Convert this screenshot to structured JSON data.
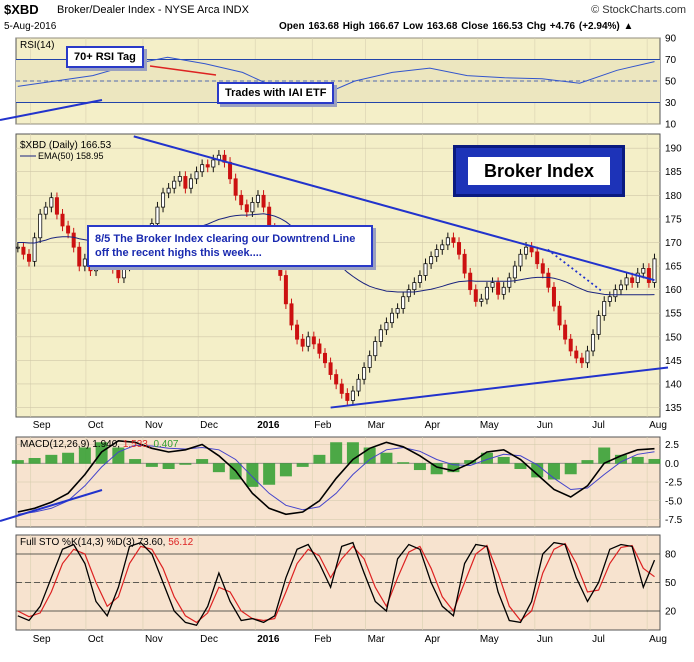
{
  "header": {
    "symbol": "$XBD",
    "subtitle": "Broker/Dealer Index - NYSE Arca INDX",
    "date": "5-Aug-2016",
    "ohlc": "Open 163.68  High 166.67  Low 163.68  Close 166.53  Chg +4.76 (+2.94%)",
    "ohlc_arrow": "▲",
    "logo": "© StockCharts.com"
  },
  "annotations": {
    "rsi_tag": "70+ RSI Tag",
    "iai_tag": "Trades with IAI ETF",
    "title_box": "Broker Index",
    "note": "8/5  The Broker Index clearing our Downtrend Line off the recent highs this week...."
  },
  "colors": {
    "price_bg": "#f4efc8",
    "lower_bg": "#f7e3cf",
    "up_candle": "#111111",
    "down_candle": "#cc1111",
    "ema": "#1a237e",
    "trendline": "#2233cc",
    "rsi_line": "#3355cc",
    "macd_line": "#000000",
    "signal_line": "#4444cc",
    "histogram": "#2e9e2e",
    "stoch_k": "#000000",
    "stoch_d": "#dd2222",
    "annotation_red": "#dd2222"
  },
  "chart_data": [
    {
      "type": "line",
      "panel": "rsi",
      "label": "RSI(14)",
      "yticks": [
        10,
        30,
        50,
        70,
        90
      ],
      "ylim": [
        10,
        90
      ],
      "overbought": 70,
      "oversold": 30,
      "x": [
        "2015-08-25",
        "2015-09-15",
        "2015-10-06",
        "2015-10-27",
        "2015-11-17",
        "2015-12-08",
        "2015-12-29",
        "2016-01-19",
        "2016-02-09",
        "2016-03-01",
        "2016-03-22",
        "2016-04-12",
        "2016-05-03",
        "2016-05-24",
        "2016-06-14",
        "2016-07-05",
        "2016-07-26",
        "2016-08-05"
      ],
      "values": [
        45,
        50,
        55,
        65,
        72,
        66,
        58,
        42,
        35,
        50,
        58,
        62,
        55,
        53,
        52,
        48,
        60,
        68
      ]
    },
    {
      "type": "candlestick",
      "panel": "price",
      "label": "$XBD (Daily) 166.53",
      "ema_label": "EMA(50) 158.95",
      "yticks": [
        135,
        140,
        145,
        150,
        155,
        160,
        165,
        170,
        175,
        180,
        185,
        190
      ],
      "ylim": [
        133,
        193
      ],
      "x_tick_labels": [
        "Sep",
        "Oct",
        "Nov",
        "Dec",
        "2016",
        "Feb",
        "Mar",
        "Apr",
        "May",
        "Jun",
        "Jul",
        "Aug"
      ],
      "close": [
        169.0,
        167.5,
        166.0,
        171.0,
        176.0,
        177.5,
        179.5,
        176.0,
        173.5,
        172.0,
        169.0,
        165.0,
        166.5,
        164.0,
        167.5,
        168.5,
        166.0,
        164.5,
        162.5,
        165.0,
        166.0,
        168.0,
        169.5,
        171.0,
        174.0,
        177.5,
        180.5,
        181.5,
        183.0,
        184.0,
        181.5,
        183.5,
        185.0,
        186.5,
        186.0,
        187.5,
        188.5,
        187.0,
        183.5,
        180.0,
        178.0,
        176.5,
        178.5,
        180.0,
        177.5,
        173.0,
        168.0,
        163.0,
        157.0,
        152.5,
        149.5,
        148.0,
        150.0,
        148.5,
        146.5,
        144.5,
        142.0,
        140.0,
        138.0,
        136.5,
        138.5,
        141.0,
        143.5,
        146.0,
        149.0,
        151.5,
        153.0,
        155.0,
        156.0,
        158.5,
        160.0,
        161.5,
        163.0,
        165.5,
        167.0,
        168.5,
        169.5,
        171.0,
        170.0,
        167.5,
        163.5,
        160.0,
        157.5,
        158.0,
        160.5,
        161.5,
        159.0,
        160.5,
        162.5,
        165.0,
        167.5,
        169.0,
        168.0,
        165.5,
        163.5,
        160.5,
        156.5,
        152.5,
        149.5,
        147.0,
        145.5,
        144.5,
        147.0,
        150.5,
        154.5,
        157.5,
        158.5,
        160.0,
        161.0,
        162.5,
        161.5,
        163.5,
        164.5,
        161.5,
        166.53
      ],
      "ema50": [
        170.0,
        170.0,
        169.9,
        169.9,
        170.2,
        170.5,
        170.9,
        171.1,
        171.2,
        171.2,
        171.1,
        170.8,
        170.6,
        170.4,
        170.3,
        170.2,
        170.1,
        169.9,
        169.7,
        169.6,
        169.5,
        169.4,
        169.4,
        169.5,
        169.7,
        170.0,
        170.4,
        170.8,
        171.3,
        171.8,
        172.1,
        172.5,
        173.0,
        173.5,
        173.9,
        174.4,
        174.9,
        175.2,
        175.5,
        175.7,
        175.8,
        175.8,
        175.9,
        176.0,
        176.1,
        175.9,
        175.6,
        175.1,
        174.4,
        173.5,
        172.6,
        171.6,
        170.8,
        169.9,
        169.0,
        168.0,
        167.0,
        165.9,
        164.8,
        163.7,
        162.8,
        162.0,
        161.3,
        160.7,
        160.3,
        160.0,
        159.7,
        159.6,
        159.5,
        159.5,
        159.5,
        159.5,
        159.7,
        159.9,
        160.1,
        160.4,
        160.7,
        161.1,
        161.4,
        161.7,
        161.8,
        161.9,
        161.8,
        161.8,
        161.8,
        161.8,
        161.8,
        161.8,
        161.8,
        161.9,
        162.1,
        162.3,
        162.5,
        162.6,
        162.6,
        162.6,
        162.4,
        162.1,
        161.7,
        161.2,
        160.6,
        160.1,
        159.6,
        159.4,
        159.2,
        159.0,
        158.9,
        158.9,
        158.9,
        158.9,
        158.9,
        158.9,
        158.9,
        158.9,
        158.95
      ],
      "downtrend_line": {
        "from": [
          "2015-10-27",
          192.5
        ],
        "to": [
          "2016-08-05",
          162.0
        ],
        "label": ""
      },
      "uptrend_line": {
        "from": [
          "2016-02-11",
          135.0
        ],
        "to": [
          "2016-08-05",
          143.5
        ],
        "label": ""
      }
    },
    {
      "type": "line",
      "panel": "macd",
      "label": "MACD(12,26,9)",
      "values_text": "1.940, 1.533, 0.407",
      "value_macd": "1.940",
      "value_signal": "1.533",
      "value_hist": "0.407",
      "yticks": [
        -7.5,
        -5.0,
        -2.5,
        0.0,
        2.5
      ],
      "ylim": [
        -8.5,
        3.5
      ],
      "macd": [
        -6.5,
        -6.0,
        -5.2,
        -4.0,
        -1.5,
        1.5,
        3.0,
        2.8,
        2.0,
        1.5,
        1.8,
        2.5,
        1.0,
        -1.0,
        -4.0,
        -6.0,
        -6.8,
        -6.5,
        -5.0,
        -2.0,
        0.5,
        2.0,
        2.8,
        2.2,
        1.0,
        -0.5,
        -1.0,
        0.0,
        1.5,
        1.8,
        0.5,
        -1.5,
        -3.5,
        -4.5,
        -3.0,
        0.0,
        1.0,
        1.8,
        1.94
      ],
      "signal": [
        -6.8,
        -6.5,
        -6.0,
        -5.0,
        -3.0,
        -0.5,
        1.5,
        2.4,
        2.3,
        2.0,
        1.9,
        2.1,
        1.8,
        0.5,
        -1.8,
        -4.0,
        -5.6,
        -6.2,
        -5.8,
        -4.0,
        -1.5,
        0.5,
        1.8,
        2.1,
        1.6,
        0.5,
        -0.2,
        -0.3,
        0.5,
        1.2,
        1.0,
        -0.2,
        -2.0,
        -3.5,
        -3.3,
        -1.5,
        0.2,
        1.2,
        1.533
      ]
    },
    {
      "type": "line",
      "panel": "stochastic",
      "label": "Full STO %K(14,3) %D(3)",
      "values_text": "73.60, 56.12",
      "value_k": "73.60",
      "value_d": "56.12",
      "yticks": [
        20,
        50,
        80
      ],
      "ylim": [
        0,
        100
      ],
      "k": [
        15,
        10,
        25,
        55,
        85,
        90,
        70,
        30,
        15,
        45,
        88,
        92,
        80,
        50,
        20,
        8,
        5,
        25,
        60,
        30,
        10,
        12,
        8,
        15,
        55,
        85,
        90,
        70,
        45,
        88,
        92,
        60,
        30,
        20,
        75,
        90,
        85,
        50,
        25,
        15,
        70,
        90,
        88,
        40,
        10,
        8,
        30,
        80,
        92,
        90,
        55,
        30,
        50,
        85,
        90,
        88,
        45,
        73.6
      ],
      "d": [
        20,
        14,
        18,
        40,
        70,
        85,
        80,
        50,
        25,
        35,
        70,
        88,
        85,
        65,
        35,
        15,
        8,
        18,
        45,
        40,
        20,
        12,
        10,
        12,
        40,
        70,
        85,
        78,
        55,
        75,
        88,
        75,
        45,
        25,
        55,
        82,
        88,
        65,
        35,
        20,
        50,
        80,
        89,
        60,
        25,
        10,
        20,
        60,
        85,
        91,
        70,
        40,
        42,
        70,
        87,
        89,
        65,
        56.12
      ]
    }
  ]
}
